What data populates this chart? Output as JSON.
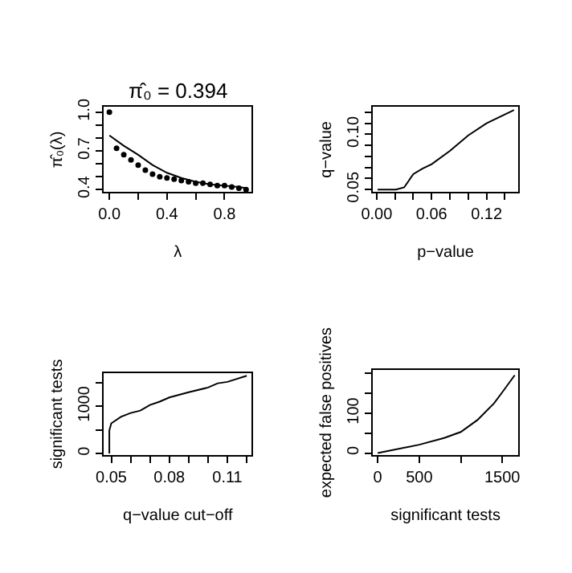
{
  "chart_data": [
    {
      "type": "line",
      "title": "π̂₀ = 0.394",
      "xlabel": "λ",
      "ylabel": "π̂₀(λ)",
      "xlim": [
        -0.038,
        0.988
      ],
      "ylim": [
        0.38,
        1.04
      ],
      "xticks": [
        {
          "value": 0,
          "label": "0.0"
        },
        {
          "value": 0.2,
          "label": null
        },
        0.4,
        {
          "value": 0.6,
          "label": null
        },
        0.8
      ],
      "yticks": [
        0.4,
        {
          "value": 0.5,
          "label": null
        },
        {
          "value": 0.6,
          "label": null
        },
        0.7,
        {
          "value": 0.8,
          "label": null
        },
        {
          "value": 0.9,
          "label": null
        },
        {
          "value": 1.0,
          "label": "1.0"
        }
      ],
      "series": [
        {
          "type": "scatter",
          "marker": "circle",
          "color": "#000000",
          "x": [
            0,
            0.05,
            0.1,
            0.15,
            0.2,
            0.25,
            0.3,
            0.35,
            0.4,
            0.45,
            0.5,
            0.55,
            0.6,
            0.65,
            0.7,
            0.75,
            0.8,
            0.85,
            0.9,
            0.95
          ],
          "values": [
            1.0,
            0.72,
            0.67,
            0.63,
            0.59,
            0.55,
            0.52,
            0.5,
            0.49,
            0.48,
            0.47,
            0.46,
            0.45,
            0.45,
            0.44,
            0.43,
            0.43,
            0.42,
            0.41,
            0.4
          ]
        },
        {
          "line_style": "solid",
          "color": "#000000",
          "x": [
            0,
            0.1,
            0.2,
            0.3,
            0.4,
            0.5,
            0.6,
            0.7,
            0.8,
            0.9,
            0.95
          ],
          "values": [
            0.82,
            0.74,
            0.67,
            0.59,
            0.53,
            0.49,
            0.46,
            0.44,
            0.43,
            0.42,
            0.41
          ]
        }
      ]
    },
    {
      "type": "line",
      "xlabel": "p−value",
      "ylabel": "q−value",
      "xlim": [
        -0.0046,
        0.155
      ],
      "ylim": [
        0.0477,
        0.1247
      ],
      "xticks": [
        {
          "value": 0,
          "label": "0.00"
        },
        {
          "value": 0.02,
          "label": null
        },
        {
          "value": 0.04,
          "label": null
        },
        0.06,
        {
          "value": 0.08,
          "label": null
        },
        {
          "value": 0.1,
          "label": null
        },
        0.12,
        {
          "value": 0.14,
          "label": null
        }
      ],
      "yticks": [
        0.05,
        {
          "value": 0.06,
          "label": null
        },
        {
          "value": 0.07,
          "label": null
        },
        {
          "value": 0.08,
          "label": null
        },
        {
          "value": 0.09,
          "label": null
        },
        {
          "value": 0.1,
          "label": "0.10"
        },
        {
          "value": 0.11,
          "label": null
        },
        {
          "value": 0.12,
          "label": null
        }
      ],
      "series": [
        {
          "line_style": "solid",
          "color": "#000000",
          "x": [
            0.001,
            0.021,
            0.03,
            0.04,
            0.05,
            0.06,
            0.08,
            0.1,
            0.12,
            0.14,
            0.15
          ],
          "values": [
            0.05,
            0.05,
            0.052,
            0.064,
            0.069,
            0.073,
            0.085,
            0.099,
            0.11,
            0.118,
            0.122
          ]
        }
      ]
    },
    {
      "type": "line",
      "xlabel": "q−value cut−off",
      "ylabel": "significant tests",
      "xlim": [
        0.0462,
        0.1225
      ],
      "ylim": [
        -33,
        1707
      ],
      "xticks": [
        0.05,
        {
          "value": 0.06,
          "label": null
        },
        {
          "value": 0.07,
          "label": null
        },
        0.08,
        {
          "value": 0.09,
          "label": null
        },
        {
          "value": 0.1,
          "label": null
        },
        0.11,
        {
          "value": 0.12,
          "label": null
        }
      ],
      "yticks": [
        0,
        {
          "value": 500,
          "label": null
        },
        1000,
        {
          "value": 1500,
          "label": null
        }
      ],
      "series": [
        {
          "line_style": "solid",
          "color": "#000000",
          "x": [
            0.049,
            0.049,
            0.05,
            0.055,
            0.06,
            0.065,
            0.07,
            0.075,
            0.08,
            0.09,
            0.1,
            0.105,
            0.11,
            0.12
          ],
          "values": [
            0,
            490,
            640,
            780,
            860,
            910,
            1030,
            1100,
            1190,
            1300,
            1400,
            1490,
            1520,
            1650
          ]
        }
      ]
    },
    {
      "type": "line",
      "xlabel": "significant tests",
      "ylabel": "expected false positives",
      "xlim": [
        -63,
        1696
      ],
      "ylim": [
        -5,
        209
      ],
      "xticks": [
        0,
        500,
        {
          "value": 1000,
          "label": null
        },
        1500
      ],
      "yticks": [
        0,
        {
          "value": 50,
          "label": null
        },
        100,
        {
          "value": 150,
          "label": null
        },
        {
          "value": 200,
          "label": null
        }
      ],
      "series": [
        {
          "line_style": "solid",
          "color": "#000000",
          "x": [
            0,
            500,
            800,
            1000,
            1200,
            1400,
            1500,
            1650
          ],
          "values": [
            0,
            21,
            38,
            53,
            83,
            125,
            153,
            196
          ]
        }
      ]
    }
  ]
}
